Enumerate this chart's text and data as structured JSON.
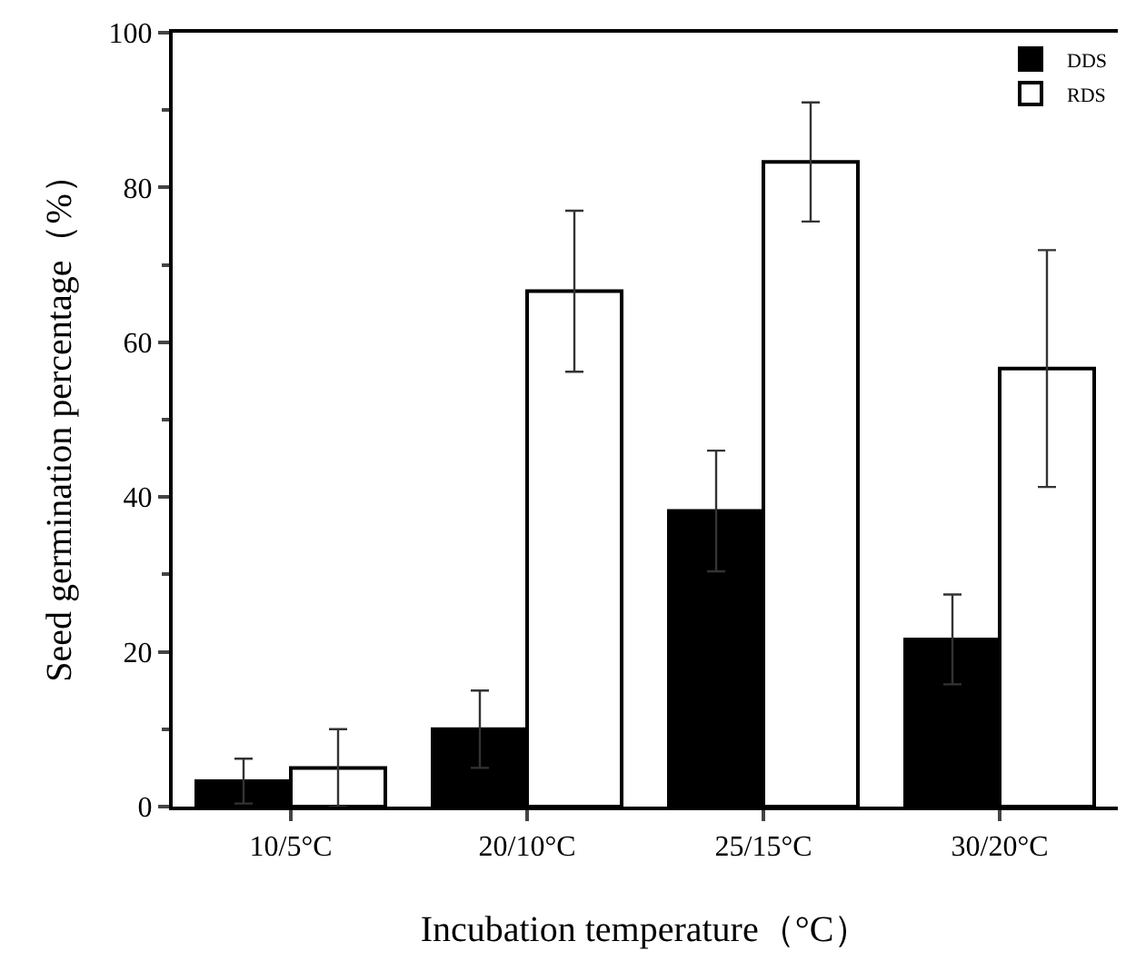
{
  "chart_data": {
    "type": "bar",
    "xlabel": "Incubation temperature（°C）",
    "ylabel": "Seed germination percentage（%）",
    "categories": [
      "10/5°C",
      "20/10°C",
      "25/15°C",
      "30/20°C"
    ],
    "series": [
      {
        "name": "DDS",
        "color": "#000000",
        "values": [
          3.3,
          10,
          38.2,
          21.6
        ],
        "errors": [
          2.9,
          5,
          7.8,
          5.8
        ]
      },
      {
        "name": "RDS",
        "color": "#ffffff",
        "values": [
          5,
          66.6,
          83.3,
          56.6
        ],
        "errors": [
          5,
          10.4,
          7.7,
          15.3
        ]
      }
    ],
    "ylim": [
      0,
      100
    ],
    "yticks": [
      0,
      20,
      40,
      60,
      80,
      100
    ],
    "legend": "top right"
  }
}
